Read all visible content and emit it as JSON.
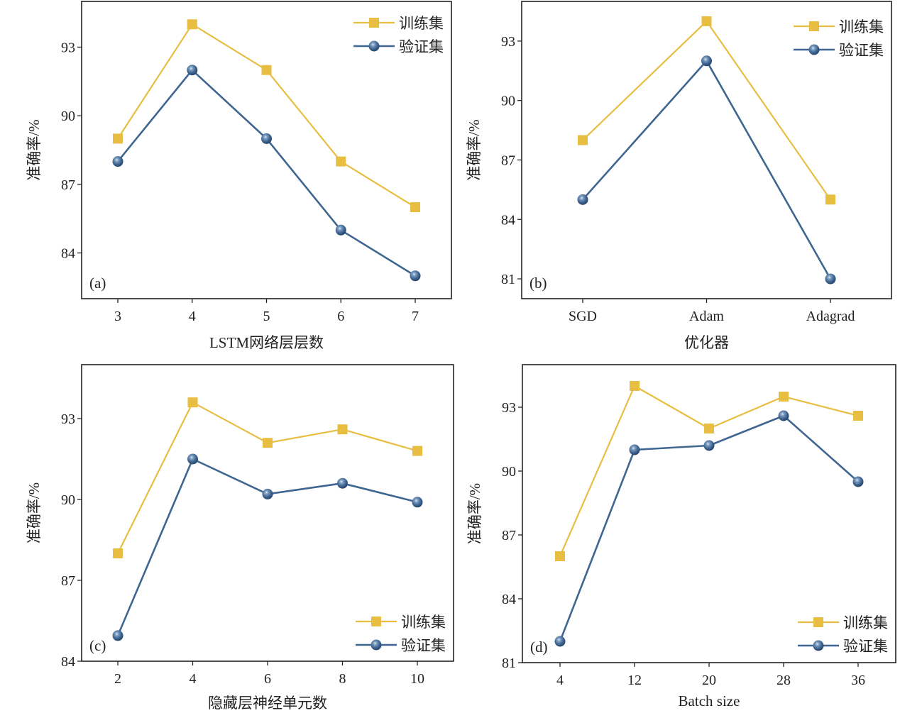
{
  "colors": {
    "train": "#E8BE42",
    "val": "#3F6591",
    "val_highlight": "#C9DCEF",
    "frame": "#222222"
  },
  "legend": {
    "train_label": "训练集",
    "val_label": "验证集"
  },
  "chart_data": [
    {
      "type": "line",
      "panel_label": "(a)",
      "title": "",
      "xlabel": "LSTM网络层层数",
      "ylabel": "准确率/%",
      "categories": [
        "3",
        "4",
        "5",
        "6",
        "7"
      ],
      "yticks": [
        84,
        87,
        90,
        93
      ],
      "ylim": [
        82.0,
        95.0
      ],
      "legend_position": "top-right",
      "grid": false,
      "series": [
        {
          "name": "训练集",
          "marker": "square",
          "values": [
            89,
            94,
            92,
            88,
            86
          ]
        },
        {
          "name": "验证集",
          "marker": "circle",
          "values": [
            88,
            92,
            89,
            85,
            83
          ]
        }
      ]
    },
    {
      "type": "line",
      "panel_label": "(b)",
      "title": "",
      "xlabel": "优化器",
      "ylabel": "准确率/%",
      "categories": [
        "SGD",
        "Adam",
        "Adagrad"
      ],
      "yticks": [
        81,
        84,
        87,
        90,
        93
      ],
      "ylim": [
        80.0,
        95.0
      ],
      "legend_position": "top-right",
      "grid": false,
      "series": [
        {
          "name": "训练集",
          "marker": "square",
          "values": [
            88,
            94,
            85
          ]
        },
        {
          "name": "验证集",
          "marker": "circle",
          "values": [
            85,
            92,
            81
          ]
        }
      ]
    },
    {
      "type": "line",
      "panel_label": "(c)",
      "title": "",
      "xlabel": "隐藏层神经单元数",
      "ylabel": "准确率/%",
      "categories": [
        "2",
        "4",
        "6",
        "8",
        "10"
      ],
      "yticks": [
        84,
        87,
        90,
        93
      ],
      "ylim": [
        84.0,
        95.0
      ],
      "legend_position": "bottom-right",
      "grid": false,
      "series": [
        {
          "name": "训练集",
          "marker": "square",
          "values": [
            88.0,
            93.6,
            92.1,
            92.6,
            91.8
          ]
        },
        {
          "name": "验证集",
          "marker": "circle",
          "values": [
            84.95,
            91.5,
            90.2,
            90.6,
            89.9
          ]
        }
      ]
    },
    {
      "type": "line",
      "panel_label": "(d)",
      "title": "",
      "xlabel": "Batch size",
      "ylabel": "准确率/%",
      "categories": [
        "4",
        "12",
        "20",
        "28",
        "36"
      ],
      "yticks": [
        81,
        84,
        87,
        90,
        93
      ],
      "ylim": [
        81.0,
        95.0
      ],
      "legend_position": "bottom-right",
      "grid": false,
      "series": [
        {
          "name": "训练集",
          "marker": "square",
          "values": [
            86.0,
            94.0,
            92.0,
            93.5,
            92.6
          ]
        },
        {
          "name": "验证集",
          "marker": "circle",
          "values": [
            82.0,
            91.0,
            91.2,
            92.6,
            89.5
          ]
        }
      ]
    }
  ]
}
